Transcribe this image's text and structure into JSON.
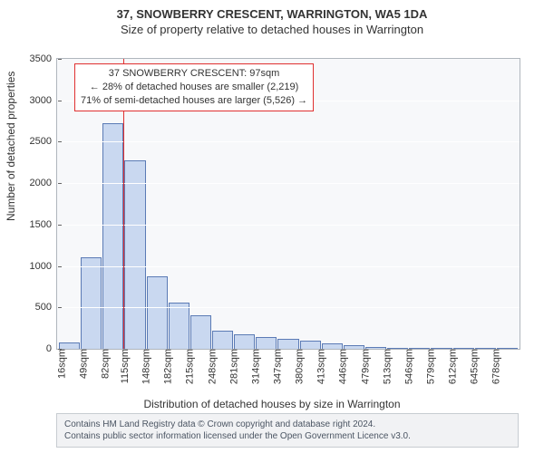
{
  "title": "37, SNOWBERRY CRESCENT, WARRINGTON, WA5 1DA",
  "subtitle": "Size of property relative to detached houses in Warrington",
  "chart": {
    "type": "histogram",
    "background_color": "#f7f8fa",
    "grid_color": "#ffffff",
    "bar_fill": "#c9d8f0",
    "bar_border": "#5b7bb5",
    "plot_border": "#b0b6bd",
    "ylabel": "Number of detached properties",
    "xlabel": "Distribution of detached houses by size in Warrington",
    "ymax": 3500,
    "ytick_step": 500,
    "yticks": [
      0,
      500,
      1000,
      1500,
      2000,
      2500,
      3000,
      3500
    ],
    "xticks": [
      "16sqm",
      "49sqm",
      "82sqm",
      "115sqm",
      "148sqm",
      "182sqm",
      "215sqm",
      "248sqm",
      "281sqm",
      "314sqm",
      "347sqm",
      "380sqm",
      "413sqm",
      "446sqm",
      "479sqm",
      "513sqm",
      "546sqm",
      "579sqm",
      "612sqm",
      "645sqm",
      "678sqm"
    ],
    "values": [
      80,
      1100,
      2720,
      2270,
      880,
      560,
      410,
      220,
      170,
      140,
      120,
      95,
      70,
      45,
      18,
      12,
      8,
      6,
      5,
      4,
      3
    ],
    "marker": {
      "position_index": 2.45,
      "color": "#e03030"
    }
  },
  "annotation": {
    "line1": "37 SNOWBERRY CRESCENT: 97sqm",
    "line2": "← 28% of detached houses are smaller (2,219)",
    "line3": "71% of semi-detached houses are larger (5,526) →",
    "border_color": "#e03030"
  },
  "footer": {
    "line1": "Contains HM Land Registry data © Crown copyright and database right 2024.",
    "line2": "Contains public sector information licensed under the Open Government Licence v3.0."
  }
}
